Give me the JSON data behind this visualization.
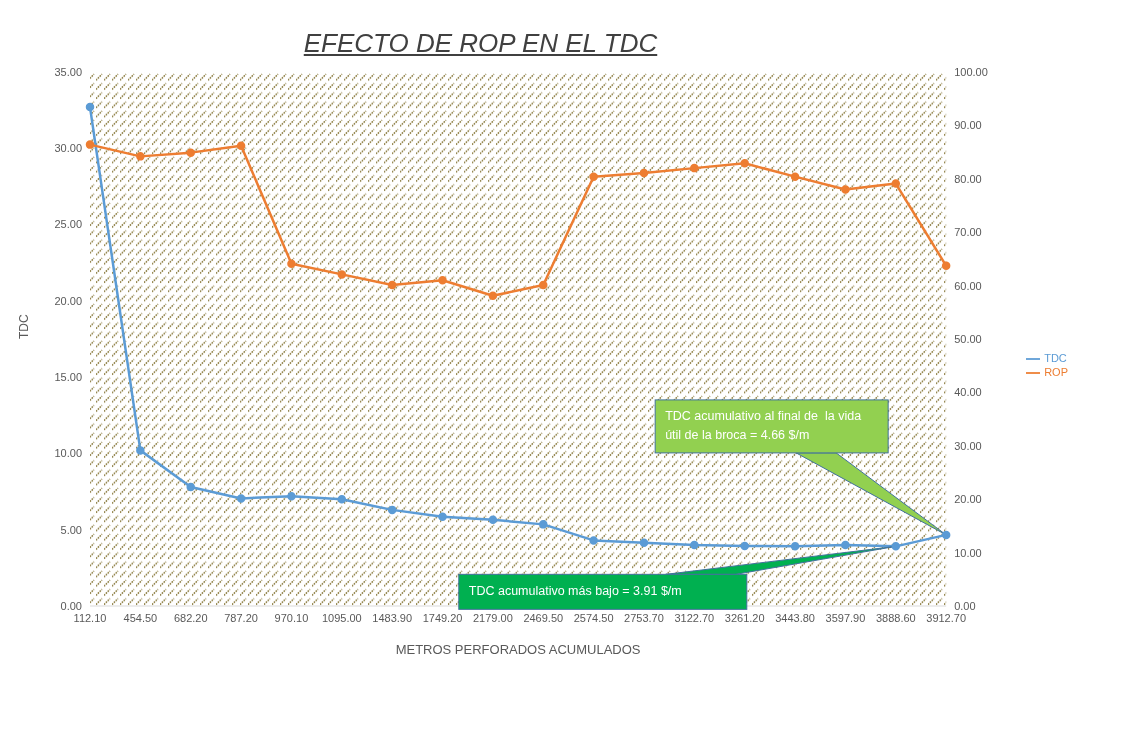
{
  "chart_data": {
    "type": "line",
    "title": "EFECTO DE ROP EN EL TDC",
    "xlabel": "METROS PERFORADOS ACUMULADOS",
    "ylabel": "TDC",
    "categories": [
      "112.10",
      "454.50",
      "682.20",
      "787.20",
      "970.10",
      "1095.00",
      "1483.90",
      "1749.20",
      "2179.00",
      "2469.50",
      "2574.50",
      "2753.70",
      "3122.70",
      "3261.20",
      "3443.80",
      "3597.90",
      "3888.60",
      "3912.70"
    ],
    "series": [
      {
        "name": "TDC",
        "color": "#5b9bd5",
        "values": [
          32.7,
          10.2,
          7.8,
          7.05,
          7.2,
          7.0,
          6.3,
          5.85,
          5.65,
          5.35,
          4.3,
          4.15,
          4.0,
          3.93,
          3.92,
          4.0,
          3.91,
          4.66
        ]
      },
      {
        "name": "ROP",
        "color": "#ed7d31",
        "axis": "y2",
        "values": [
          86.4,
          84.2,
          84.9,
          86.2,
          64.1,
          62.1,
          60.1,
          61.0,
          58.1,
          60.1,
          80.4,
          81.1,
          82.0,
          82.9,
          80.4,
          78.0,
          79.1,
          63.7
        ]
      }
    ],
    "ylim": [
      0,
      35
    ],
    "yticks": [
      {
        "value": 0,
        "label": "0.00"
      },
      {
        "value": 5,
        "label": "5.00"
      },
      {
        "value": 10,
        "label": "10.00"
      },
      {
        "value": 15,
        "label": "15.00"
      },
      {
        "value": 20,
        "label": "20.00"
      },
      {
        "value": 25,
        "label": "25.00"
      },
      {
        "value": 30,
        "label": "30.00"
      },
      {
        "value": 35,
        "label": "35.00"
      }
    ],
    "y2lim": [
      0,
      100
    ],
    "y2ticks": [
      {
        "value": 0,
        "label": "0.00"
      },
      {
        "value": 10,
        "label": "10.00"
      },
      {
        "value": 20,
        "label": "20.00"
      },
      {
        "value": 30,
        "label": "30.00"
      },
      {
        "value": 40,
        "label": "40.00"
      },
      {
        "value": 50,
        "label": "50.00"
      },
      {
        "value": 60,
        "label": "60.00"
      },
      {
        "value": 70,
        "label": "70.00"
      },
      {
        "value": 80,
        "label": "80.00"
      },
      {
        "value": 90,
        "label": "90.00"
      },
      {
        "value": 100,
        "label": "100.00"
      }
    ],
    "annotations": [
      "TDC acumulativo al final de  la vida útil de la broca = 4.66 $/m",
      {
        "text": "TDC acumulativo más bajo = 3.91 $/m",
        "x": "3888.60",
        "y": 3.91
      }
    ],
    "legend": "right",
    "marker": "circle",
    "line_style": "solid",
    "grid": false
  }
}
